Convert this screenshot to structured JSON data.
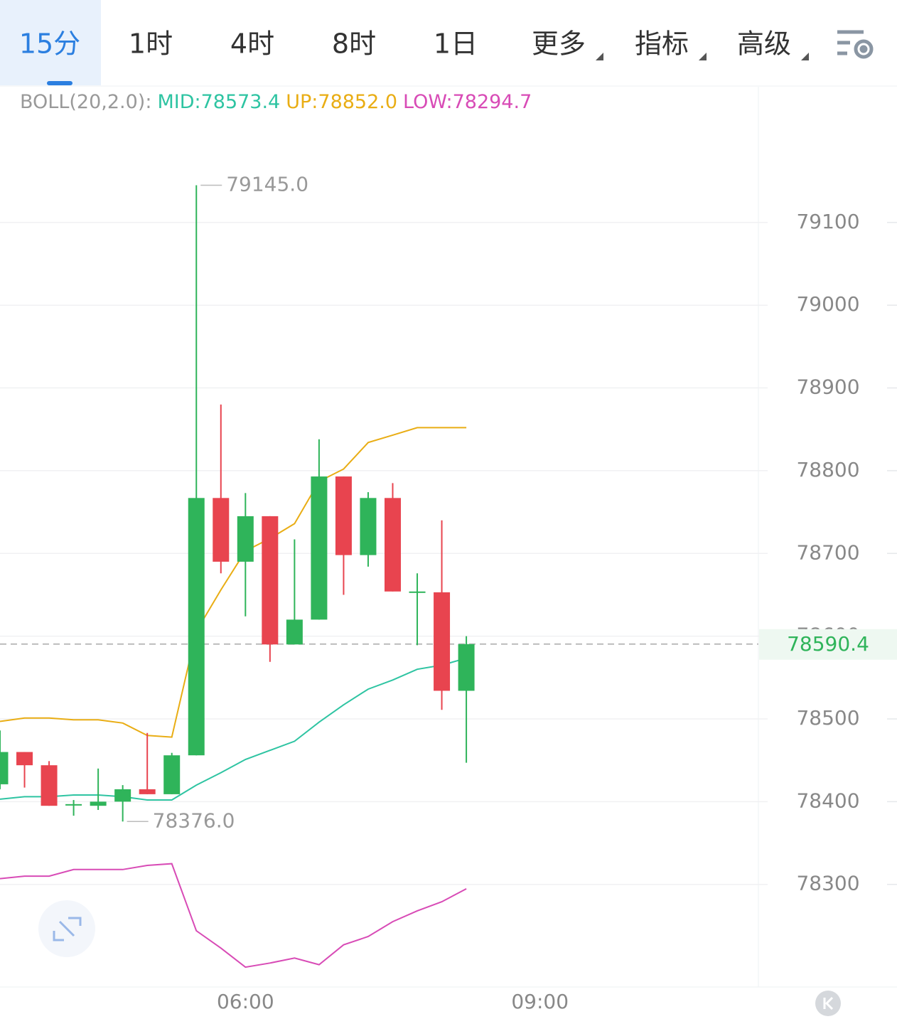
{
  "tabs": {
    "items": [
      "15分",
      "1时",
      "4时",
      "8时",
      "1日",
      "更多",
      "指标",
      "高级"
    ],
    "active": 0
  },
  "chart_data": {
    "type": "candlestick",
    "ylim": [
      78176,
      79264
    ],
    "yticks": [
      78300,
      78400,
      78500,
      78600,
      78700,
      78800,
      78900,
      79000,
      79100
    ],
    "xlim": [
      0,
      30.9
    ],
    "xticks": [
      {
        "value": 10,
        "label": "06:00"
      },
      {
        "value": 22,
        "label": "09:00"
      }
    ],
    "grid": true,
    "up_color": "#2fb45a",
    "down_color": "#e8444f",
    "open": [
      78421,
      78460,
      78444,
      78396,
      78395,
      78400,
      78415,
      78409,
      78456,
      78767,
      78690,
      78745,
      78590,
      78620,
      78793,
      78698,
      78767,
      78654,
      78653,
      78534
    ],
    "close": [
      78460,
      78444,
      78395,
      78397,
      78400,
      78415,
      78409,
      78456,
      78767,
      78690,
      78745,
      78590,
      78620,
      78793,
      78698,
      78767,
      78654,
      78654,
      78534,
      78590.4
    ],
    "high": [
      78486,
      78460,
      78449,
      78402,
      78440,
      78420,
      78483,
      78459,
      79145,
      78880,
      78773,
      78745,
      78717,
      78838,
      78793,
      78774,
      78785,
      78676,
      78740,
      78600
    ],
    "low": [
      78415,
      78417,
      78395,
      78383,
      78390,
      78376,
      78409,
      78409,
      78456,
      78676,
      78624,
      78569,
      78590,
      78620,
      78650,
      78684,
      78654,
      78589,
      78511,
      78447
    ],
    "annotations": [
      {
        "index": 8,
        "value": 79145,
        "label": "79145.0"
      },
      {
        "index": 5,
        "value": 78376,
        "label": "78376.0"
      }
    ],
    "last_price": 78590.4,
    "last_price_color": "#2fb45a",
    "indicator": {
      "label": "BOLL(20,2.0):",
      "series": [
        {
          "name": "MID",
          "legend_label": "MID:78573.4",
          "color": "#2ec4a2",
          "values": [
            78403,
            78406,
            78406,
            78408,
            78408,
            78406,
            78402,
            78402,
            78420,
            78435,
            78451,
            78462,
            78473,
            78496,
            78517,
            78536,
            78547,
            78560,
            78565,
            78573.4
          ]
        },
        {
          "name": "UP",
          "legend_label": "UP:78852.0",
          "color": "#e9ad14",
          "values": [
            78497,
            78501,
            78501,
            78499,
            78499,
            78495,
            78480,
            78478,
            78606,
            78656,
            78703,
            78718,
            78736,
            78787,
            78802,
            78834,
            78843,
            78852,
            78852,
            78852
          ]
        },
        {
          "name": "LOW",
          "legend_label": "LOW:78294.7",
          "color": "#d84bb6",
          "values": [
            78307,
            78310,
            78310,
            78318,
            78318,
            78318,
            78323,
            78325,
            78244,
            78223,
            78200,
            78205,
            78211,
            78203,
            78227,
            78237,
            78255,
            78268,
            78279,
            78294.7
          ]
        }
      ]
    }
  }
}
